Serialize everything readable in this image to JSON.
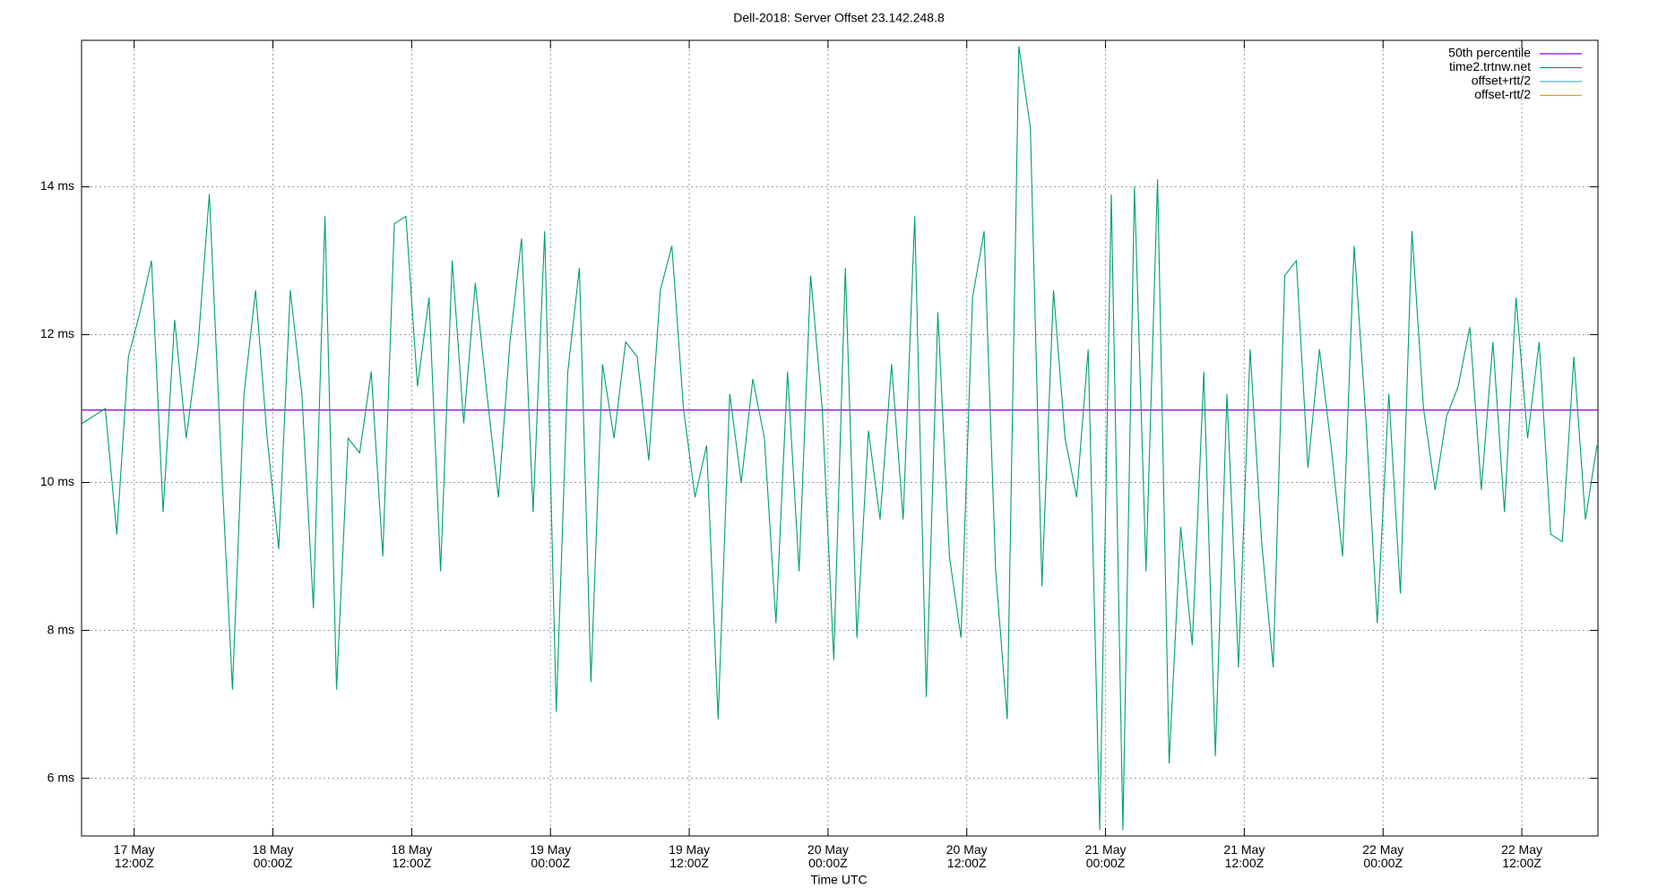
{
  "chart_data": {
    "type": "line",
    "title": "Dell-2018: Server Offset 23.142.248.8",
    "x_label": "Time UTC",
    "xlim": [
      "17 May 07:27Z",
      "22 May 18:35Z"
    ],
    "xticks": [
      "17 May 12:00Z",
      "18 May 00:00Z",
      "18 May 12:00Z",
      "19 May 00:00Z",
      "19 May 12:00Z",
      "20 May 00:00Z",
      "20 May 12:00Z",
      "21 May 00:00Z",
      "21 May 12:00Z",
      "22 May 00:00Z",
      "22 May 12:00Z"
    ],
    "ylim": [
      5.22,
      15.98
    ],
    "yticks": [
      {
        "value": 6,
        "label": "6 ms"
      },
      {
        "value": 8,
        "label": "8 ms"
      },
      {
        "value": 10,
        "label": "10 ms"
      },
      {
        "value": 12,
        "label": "12 ms"
      },
      {
        "value": 14,
        "label": "14 ms"
      }
    ],
    "grid": true,
    "legend": "top-right",
    "x": [
      "17 May 07:30Z",
      "17 May 08:30Z",
      "17 May 09:30Z",
      "17 May 10:30Z",
      "17 May 11:30Z",
      "17 May 12:30Z",
      "17 May 13:30Z",
      "17 May 14:30Z",
      "17 May 15:30Z",
      "17 May 16:30Z",
      "17 May 17:30Z",
      "17 May 18:30Z",
      "17 May 19:30Z",
      "17 May 20:30Z",
      "17 May 21:30Z",
      "17 May 22:30Z",
      "17 May 23:30Z",
      "18 May 00:30Z",
      "18 May 01:30Z",
      "18 May 02:30Z",
      "18 May 03:30Z",
      "18 May 04:30Z",
      "18 May 05:30Z",
      "18 May 06:30Z",
      "18 May 07:30Z",
      "18 May 08:30Z",
      "18 May 09:30Z",
      "18 May 10:30Z",
      "18 May 11:30Z",
      "18 May 12:30Z",
      "18 May 13:30Z",
      "18 May 14:30Z",
      "18 May 15:30Z",
      "18 May 16:30Z",
      "18 May 17:30Z",
      "18 May 18:30Z",
      "18 May 19:30Z",
      "18 May 20:30Z",
      "18 May 21:30Z",
      "18 May 22:30Z",
      "18 May 23:30Z",
      "19 May 00:30Z",
      "19 May 01:30Z",
      "19 May 02:30Z",
      "19 May 03:30Z",
      "19 May 04:30Z",
      "19 May 05:30Z",
      "19 May 06:30Z",
      "19 May 07:30Z",
      "19 May 08:30Z",
      "19 May 09:30Z",
      "19 May 10:30Z",
      "19 May 11:30Z",
      "19 May 12:30Z",
      "19 May 13:30Z",
      "19 May 14:30Z",
      "19 May 15:30Z",
      "19 May 16:30Z",
      "19 May 17:30Z",
      "19 May 18:30Z",
      "19 May 19:30Z",
      "19 May 20:30Z",
      "19 May 21:30Z",
      "19 May 22:30Z",
      "19 May 23:30Z",
      "20 May 00:30Z",
      "20 May 01:30Z",
      "20 May 02:30Z",
      "20 May 03:30Z",
      "20 May 04:30Z",
      "20 May 05:30Z",
      "20 May 06:30Z",
      "20 May 07:30Z",
      "20 May 08:30Z",
      "20 May 09:30Z",
      "20 May 10:30Z",
      "20 May 11:30Z",
      "20 May 12:30Z",
      "20 May 13:30Z",
      "20 May 14:30Z",
      "20 May 15:30Z",
      "20 May 16:30Z",
      "20 May 17:30Z",
      "20 May 18:30Z",
      "20 May 19:30Z",
      "20 May 20:30Z",
      "20 May 21:30Z",
      "20 May 22:30Z",
      "20 May 23:30Z",
      "21 May 00:30Z",
      "21 May 01:30Z",
      "21 May 02:30Z",
      "21 May 03:30Z",
      "21 May 04:30Z",
      "21 May 05:30Z",
      "21 May 06:30Z",
      "21 May 07:30Z",
      "21 May 08:30Z",
      "21 May 09:30Z",
      "21 May 10:30Z",
      "21 May 11:30Z",
      "21 May 12:30Z",
      "21 May 13:30Z",
      "21 May 14:30Z",
      "21 May 15:30Z",
      "21 May 16:30Z",
      "21 May 17:30Z",
      "21 May 18:30Z",
      "21 May 19:30Z",
      "21 May 20:30Z",
      "21 May 21:30Z",
      "21 May 22:30Z",
      "21 May 23:30Z",
      "22 May 00:30Z",
      "22 May 01:30Z",
      "22 May 02:30Z",
      "22 May 03:30Z",
      "22 May 04:30Z",
      "22 May 05:30Z",
      "22 May 06:30Z",
      "22 May 07:30Z",
      "22 May 08:30Z",
      "22 May 09:30Z",
      "22 May 10:30Z",
      "22 May 11:30Z",
      "22 May 12:30Z",
      "22 May 13:30Z",
      "22 May 14:30Z",
      "22 May 15:30Z",
      "22 May 16:30Z",
      "22 May 17:30Z",
      "22 May 18:30Z"
    ],
    "series": [
      {
        "name": "50th percentile",
        "color": "#9400d3",
        "value": 10.98
      },
      {
        "name": "time2.trtnw.net",
        "color": "#009e73",
        "values": [
          10.8,
          10.9,
          11.0,
          9.3,
          11.7,
          12.3,
          13.0,
          9.6,
          12.2,
          10.6,
          11.8,
          13.9,
          10.4,
          7.2,
          11.2,
          12.6,
          10.6,
          9.1,
          12.6,
          11.2,
          8.3,
          13.6,
          7.2,
          10.6,
          10.4,
          11.5,
          9.0,
          13.5,
          13.6,
          11.3,
          12.5,
          8.8,
          13.0,
          10.8,
          12.7,
          11.2,
          9.8,
          11.9,
          13.3,
          9.6,
          13.4,
          6.9,
          11.5,
          12.9,
          7.3,
          11.6,
          10.6,
          11.9,
          11.7,
          10.3,
          12.6,
          13.2,
          11.0,
          9.8,
          10.5,
          6.8,
          11.2,
          10.0,
          11.4,
          10.6,
          8.1,
          11.5,
          8.8,
          12.8,
          11.0,
          7.6,
          12.9,
          7.9,
          10.7,
          9.5,
          11.6,
          9.5,
          13.6,
          7.1,
          12.3,
          9.0,
          7.9,
          12.5,
          13.4,
          8.8,
          6.8,
          15.9,
          14.8,
          8.6,
          12.6,
          10.6,
          9.8,
          11.8,
          5.3,
          13.9,
          5.3,
          14.0,
          8.8,
          14.1,
          6.2,
          9.4,
          7.8,
          11.5,
          6.3,
          11.2,
          7.5,
          11.8,
          9.2,
          7.5,
          12.8,
          13.0,
          10.2,
          11.8,
          10.5,
          9.0,
          13.2,
          10.9,
          8.1,
          11.2,
          8.5,
          13.4,
          11.0,
          9.9,
          10.9,
          11.3,
          12.1,
          9.9,
          11.9,
          9.6,
          12.5,
          10.6,
          11.9,
          9.3,
          9.2,
          11.7,
          9.5,
          10.5
        ]
      },
      {
        "name": "offset+rtt/2",
        "color": "#56b4e9"
      },
      {
        "name": "offset-rtt/2",
        "color": "#e69f00"
      }
    ]
  }
}
